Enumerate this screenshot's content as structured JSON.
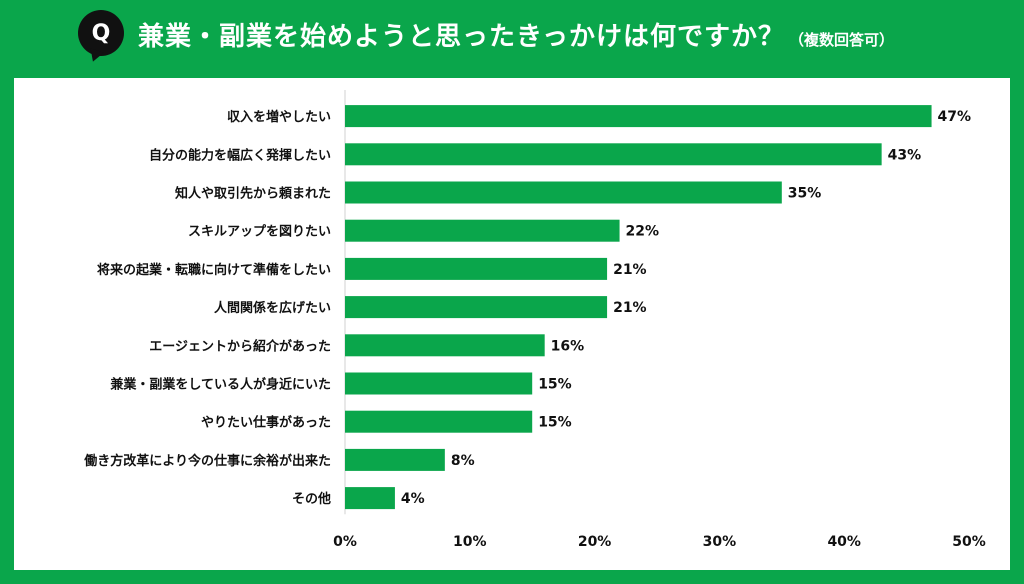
{
  "header": {
    "badge": "Q",
    "title": "兼業・副業を始めようと思ったきっかけは何ですか？",
    "subtitle": "（複数回答可）"
  },
  "colors": {
    "background": "#0aa64b",
    "bar": "#0aa64b",
    "panel": "#ffffff"
  },
  "chart_data": {
    "type": "bar",
    "orientation": "horizontal",
    "categories": [
      "収入を増やしたい",
      "自分の能力を幅広く発揮したい",
      "知人や取引先から頼まれた",
      "スキルアップを図りたい",
      "将来の起業・転職に向けて準備をしたい",
      "人間関係を広げたい",
      "エージェントから紹介があった",
      "兼業・副業をしている人が身近にいた",
      "やりたい仕事があった",
      "働き方改革により今の仕事に余裕が出来た",
      "その他"
    ],
    "values": [
      47,
      43,
      35,
      22,
      21,
      21,
      16,
      15,
      15,
      8,
      4
    ],
    "value_labels": [
      "47%",
      "43%",
      "35%",
      "22%",
      "21%",
      "21%",
      "16%",
      "15%",
      "15%",
      "8%",
      "4%"
    ],
    "xlim": [
      0,
      50
    ],
    "x_ticks": [
      "0%",
      "10%",
      "20%",
      "30%",
      "40%",
      "50%"
    ],
    "grid": false
  }
}
